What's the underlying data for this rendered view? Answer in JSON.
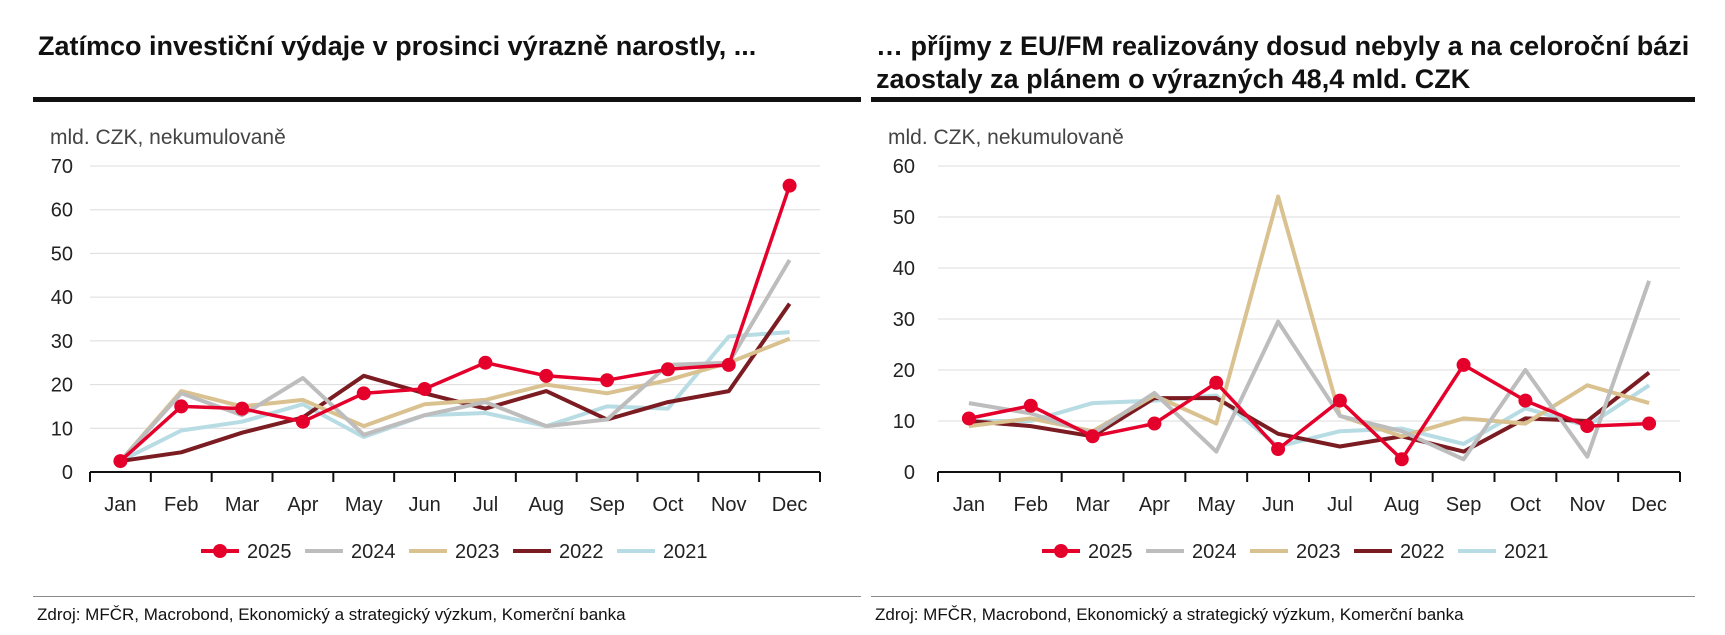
{
  "colors": {
    "2025": "#e4002b",
    "2024": "#bdbdbd",
    "2023": "#d9c190",
    "2022": "#7b1c22",
    "2021": "#b7dce3"
  },
  "chart_data": [
    {
      "type": "line",
      "title": "Zatímco investiční výdaje v prosinci výrazně narostly, ...",
      "unit_label": "mld. CZK, nekumulovaně",
      "ylim": [
        0,
        70
      ],
      "yticks": [
        0,
        10,
        20,
        30,
        40,
        50,
        60,
        70
      ],
      "grid": true,
      "legend_position": "bottom",
      "categories": [
        "Jan",
        "Feb",
        "Mar",
        "Apr",
        "May",
        "Jun",
        "Jul",
        "Aug",
        "Sep",
        "Oct",
        "Nov",
        "Dec"
      ],
      "series": [
        {
          "name": "2021",
          "color": "#b7dce3",
          "values": [
            2.5,
            9.5,
            11.5,
            15.5,
            8,
            13,
            13.5,
            10.5,
            15,
            14.5,
            31,
            32
          ]
        },
        {
          "name": "2022",
          "color": "#7b1c22",
          "values": [
            2.5,
            4.5,
            9,
            12.5,
            22,
            18,
            14.5,
            18.5,
            12,
            16,
            18.5,
            38.5
          ]
        },
        {
          "name": "2023",
          "color": "#d9c190",
          "values": [
            2.5,
            18.5,
            15,
            16.5,
            10.5,
            15.5,
            16.5,
            20,
            18,
            21,
            25,
            30.5
          ]
        },
        {
          "name": "2024",
          "color": "#bdbdbd",
          "values": [
            2.5,
            18,
            13,
            21.5,
            8.5,
            13,
            16,
            10.5,
            12,
            24.5,
            25,
            48.5
          ]
        },
        {
          "name": "2025",
          "color": "#e4002b",
          "values": [
            2.5,
            15,
            14.5,
            11.5,
            18,
            19,
            25,
            22,
            21,
            23.5,
            24.5,
            65.5
          ],
          "markers": true
        }
      ],
      "source": "Zdroj: MFČR, Macrobond, Ekonomický a strategický výzkum, Komerční banka"
    },
    {
      "type": "line",
      "title": "… příjmy z EU/FM realizovány dosud nebyly a na celoroční bázi zaostaly za plánem o výrazných 48,4 mld. CZK",
      "title_lines": [
        "… příjmy z EU/FM realizovány dosud nebyly a na celoroční bázi",
        "zaostaly za plánem o výrazných 48,4 mld. CZK"
      ],
      "unit_label": "mld. CZK, nekumulovaně",
      "ylim": [
        0,
        60
      ],
      "yticks": [
        0,
        10,
        20,
        30,
        40,
        50,
        60
      ],
      "grid": true,
      "legend_position": "bottom",
      "categories": [
        "Jan",
        "Feb",
        "Mar",
        "Apr",
        "May",
        "Jun",
        "Jul",
        "Aug",
        "Sep",
        "Oct",
        "Nov",
        "Dec"
      ],
      "series": [
        {
          "name": "2021",
          "color": "#b7dce3",
          "values": [
            10,
            10,
            13.5,
            14,
            15,
            5,
            8,
            8.5,
            5.5,
            12.5,
            9,
            17
          ]
        },
        {
          "name": "2022",
          "color": "#7b1c22",
          "values": [
            10,
            9,
            7,
            14.5,
            14.5,
            7.5,
            5,
            7,
            4,
            10.5,
            10,
            19.5
          ]
        },
        {
          "name": "2023",
          "color": "#d9c190",
          "values": [
            9,
            10.5,
            8,
            15,
            9.5,
            54,
            11,
            7,
            10.5,
            9.5,
            17,
            13.5
          ]
        },
        {
          "name": "2024",
          "color": "#bdbdbd",
          "values": [
            13.5,
            11.5,
            7.5,
            15.5,
            4,
            29.5,
            11,
            8,
            2.5,
            20,
            3,
            37.5
          ]
        },
        {
          "name": "2025",
          "color": "#e4002b",
          "values": [
            10.5,
            13,
            7,
            9.5,
            17.5,
            4.5,
            14,
            2.5,
            21,
            14,
            9,
            9.5
          ],
          "markers": true
        }
      ],
      "source": "Zdroj: MFČR, Macrobond, Ekonomický a strategický výzkum, Komerční banka"
    }
  ]
}
